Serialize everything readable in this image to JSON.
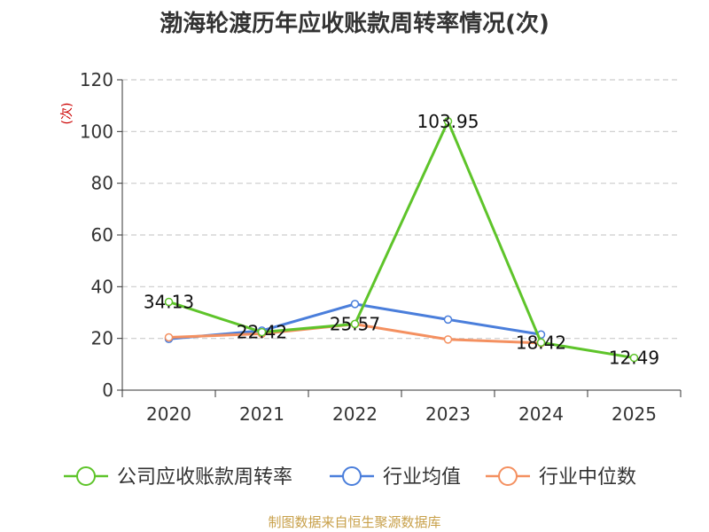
{
  "chart_data": {
    "type": "line",
    "title": "渤海轮渡历年应收账款周转率情况(次)",
    "ylabel": "(次)",
    "xlabel": "",
    "categories": [
      "2020",
      "2021",
      "2022",
      "2023",
      "2024",
      "2025"
    ],
    "ylim": [
      0,
      120
    ],
    "yticks": [
      0,
      20,
      40,
      60,
      80,
      100,
      120
    ],
    "grid": true,
    "legend_position": "bottom",
    "series": [
      {
        "name": "公司应收账款周转率",
        "color": "#5ec42a",
        "values": [
          34.13,
          22.42,
          25.57,
          103.95,
          18.42,
          12.49
        ],
        "labels": [
          "34.13",
          "22.42",
          "25.57",
          "103.95",
          "18.42",
          "12.49"
        ]
      },
      {
        "name": "行业均值",
        "color": "#4a7edb",
        "values": [
          19.8,
          23.0,
          33.3,
          27.3,
          21.5,
          null
        ]
      },
      {
        "name": "行业中位数",
        "color": "#f49060",
        "values": [
          20.4,
          21.8,
          25.5,
          19.6,
          18.2,
          null
        ]
      }
    ]
  },
  "source": "制图数据来自恒生聚源数据库"
}
